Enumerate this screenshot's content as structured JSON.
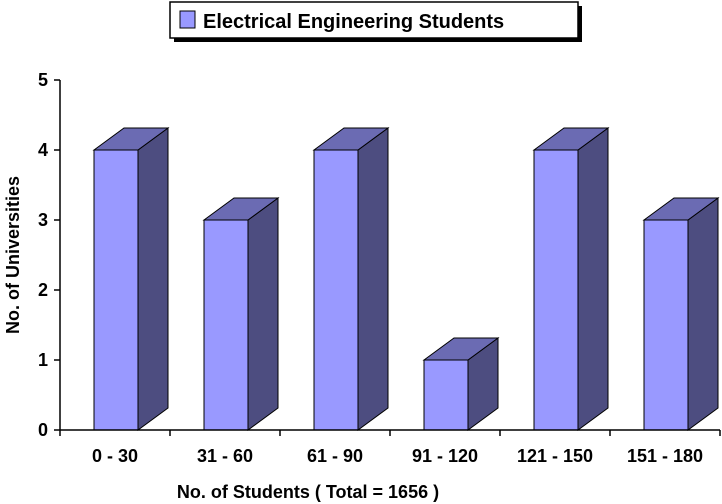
{
  "chart_data": {
    "type": "bar",
    "style": "3d",
    "categories": [
      "0 - 30",
      "31 - 60",
      "61 - 90",
      "91 - 120",
      "121 - 150",
      "151 - 180"
    ],
    "series": [
      {
        "name": "Electrical Engineering Students",
        "values": [
          4,
          3,
          4,
          1,
          4,
          3
        ]
      }
    ],
    "ylim": [
      0,
      5
    ],
    "yticks": [
      "0",
      "1",
      "2",
      "3",
      "4",
      "5"
    ],
    "ylabel": "No. of Universities",
    "xlabel": "No. of Students ( Total =  1656  )",
    "legend": {
      "label": "Electrical Engineering Students",
      "placement": "top-center"
    },
    "grid": false,
    "colors": {
      "front": "#9999ff",
      "side": "#4d4d80",
      "top": "#6b6bb3",
      "outline": "#000000"
    }
  }
}
